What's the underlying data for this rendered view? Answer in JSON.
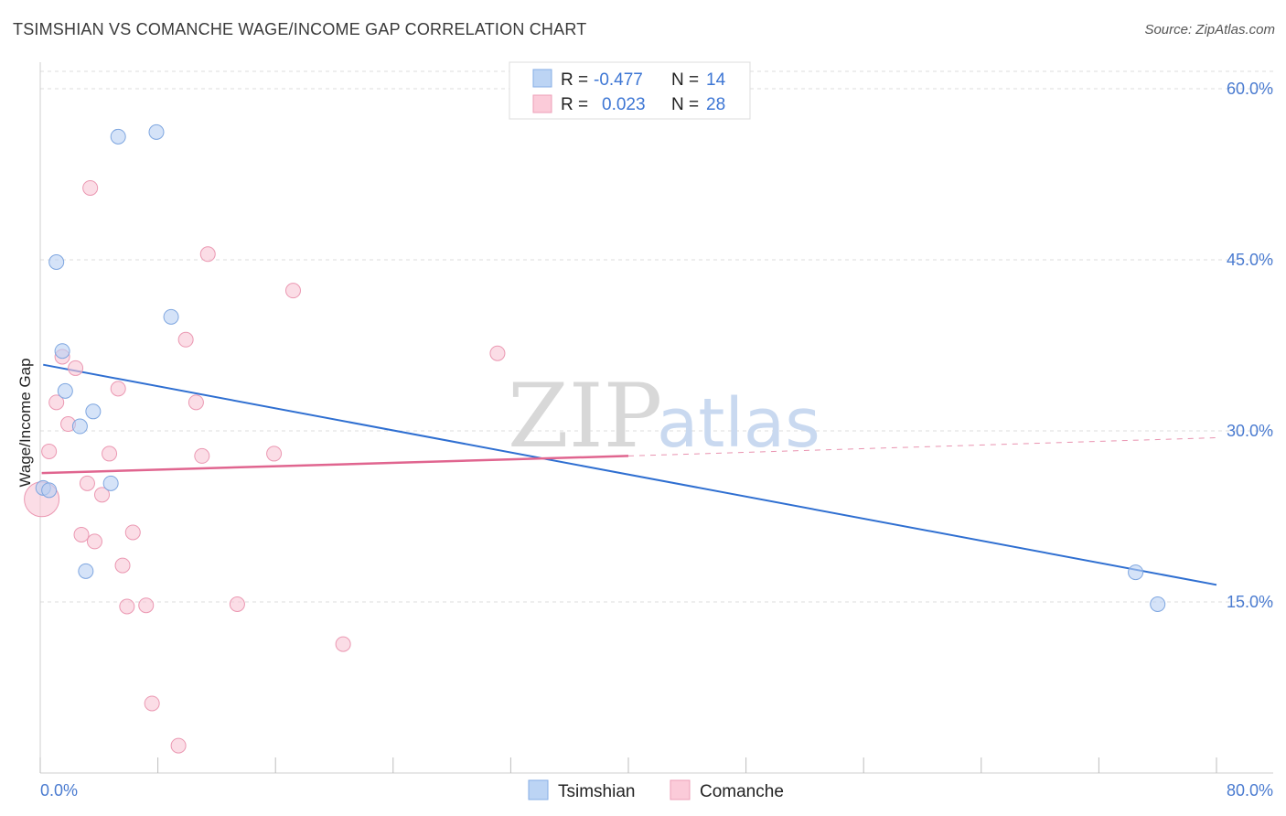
{
  "header": {
    "title": "TSIMSHIAN VS COMANCHE WAGE/INCOME GAP CORRELATION CHART",
    "source": "Source: ZipAtlas.com"
  },
  "watermark": {
    "zip": "ZIP",
    "atlas": "atlas"
  },
  "legend": {
    "series": [
      {
        "r_label": "R =",
        "r_value": "-0.477",
        "n_label": "N =",
        "n_value": "14",
        "color": "#a9c8f0"
      },
      {
        "r_label": "R =",
        "r_value": " 0.023",
        "n_label": "N =",
        "n_value": "28",
        "color": "#f5b8cb"
      }
    ]
  },
  "bottom_legend": {
    "tsimshian": "Tsimshian",
    "comanche": "Comanche"
  },
  "colors": {
    "tsimshian_fill": "#b9d1f3",
    "tsimshian_stroke": "#7ea6e0",
    "tsimshian_line": "#2f6fd1",
    "comanche_fill": "#f9c7d6",
    "comanche_stroke": "#eb98b2",
    "comanche_line": "#e0658f",
    "grid": "#dddddd"
  },
  "chart_data": {
    "type": "scatter",
    "title": "TSIMSHIAN VS COMANCHE WAGE/INCOME GAP CORRELATION CHART",
    "xlabel": "",
    "ylabel": "Wage/Income Gap",
    "xlim": [
      0,
      80
    ],
    "ylim": [
      0,
      60
    ],
    "x_tick_labels": [
      "0.0%",
      "80.0%"
    ],
    "y_ticks": [
      {
        "value": 15,
        "label": "15.0%"
      },
      {
        "value": 30,
        "label": "30.0%"
      },
      {
        "value": 45,
        "label": "45.0%"
      },
      {
        "value": 60,
        "label": "60.0%"
      }
    ],
    "series": [
      {
        "name": "Tsimshian",
        "points": [
          {
            "x": 0.2,
            "y": 25.0
          },
          {
            "x": 0.6,
            "y": 24.8
          },
          {
            "x": 1.1,
            "y": 44.8
          },
          {
            "x": 1.5,
            "y": 37.0
          },
          {
            "x": 1.7,
            "y": 33.5
          },
          {
            "x": 2.7,
            "y": 30.4
          },
          {
            "x": 3.6,
            "y": 31.7
          },
          {
            "x": 3.1,
            "y": 17.7
          },
          {
            "x": 4.8,
            "y": 25.4
          },
          {
            "x": 5.3,
            "y": 55.8
          },
          {
            "x": 7.9,
            "y": 56.2
          },
          {
            "x": 8.9,
            "y": 40.0
          },
          {
            "x": 74.5,
            "y": 17.6
          },
          {
            "x": 76.0,
            "y": 14.8
          }
        ],
        "trend": {
          "x1": 0.2,
          "y1": 35.8,
          "x2": 80,
          "y2": 16.5
        }
      },
      {
        "name": "Comanche",
        "points": [
          {
            "x": 0.1,
            "y": 24.0
          },
          {
            "x": 0.6,
            "y": 28.2
          },
          {
            "x": 1.1,
            "y": 32.5
          },
          {
            "x": 1.5,
            "y": 36.5
          },
          {
            "x": 1.9,
            "y": 30.6
          },
          {
            "x": 2.4,
            "y": 35.5
          },
          {
            "x": 2.8,
            "y": 20.9
          },
          {
            "x": 3.2,
            "y": 25.4
          },
          {
            "x": 3.4,
            "y": 51.3
          },
          {
            "x": 3.7,
            "y": 20.3
          },
          {
            "x": 4.2,
            "y": 24.4
          },
          {
            "x": 4.7,
            "y": 28.0
          },
          {
            "x": 5.3,
            "y": 33.7
          },
          {
            "x": 5.6,
            "y": 18.2
          },
          {
            "x": 5.9,
            "y": 14.6
          },
          {
            "x": 6.3,
            "y": 21.1
          },
          {
            "x": 7.2,
            "y": 14.7
          },
          {
            "x": 7.6,
            "y": 6.1
          },
          {
            "x": 9.4,
            "y": 2.4
          },
          {
            "x": 9.9,
            "y": 38.0
          },
          {
            "x": 10.6,
            "y": 32.5
          },
          {
            "x": 11.0,
            "y": 27.8
          },
          {
            "x": 11.4,
            "y": 45.5
          },
          {
            "x": 13.4,
            "y": 14.8
          },
          {
            "x": 15.9,
            "y": 28.0
          },
          {
            "x": 17.2,
            "y": 42.3
          },
          {
            "x": 20.6,
            "y": 11.3
          },
          {
            "x": 31.1,
            "y": 36.8
          }
        ],
        "trend": {
          "x1": 0.1,
          "y1": 26.3,
          "x2": 40,
          "y2": 27.8,
          "dash_to_x": 80,
          "dash_to_y": 29.4
        }
      }
    ]
  }
}
